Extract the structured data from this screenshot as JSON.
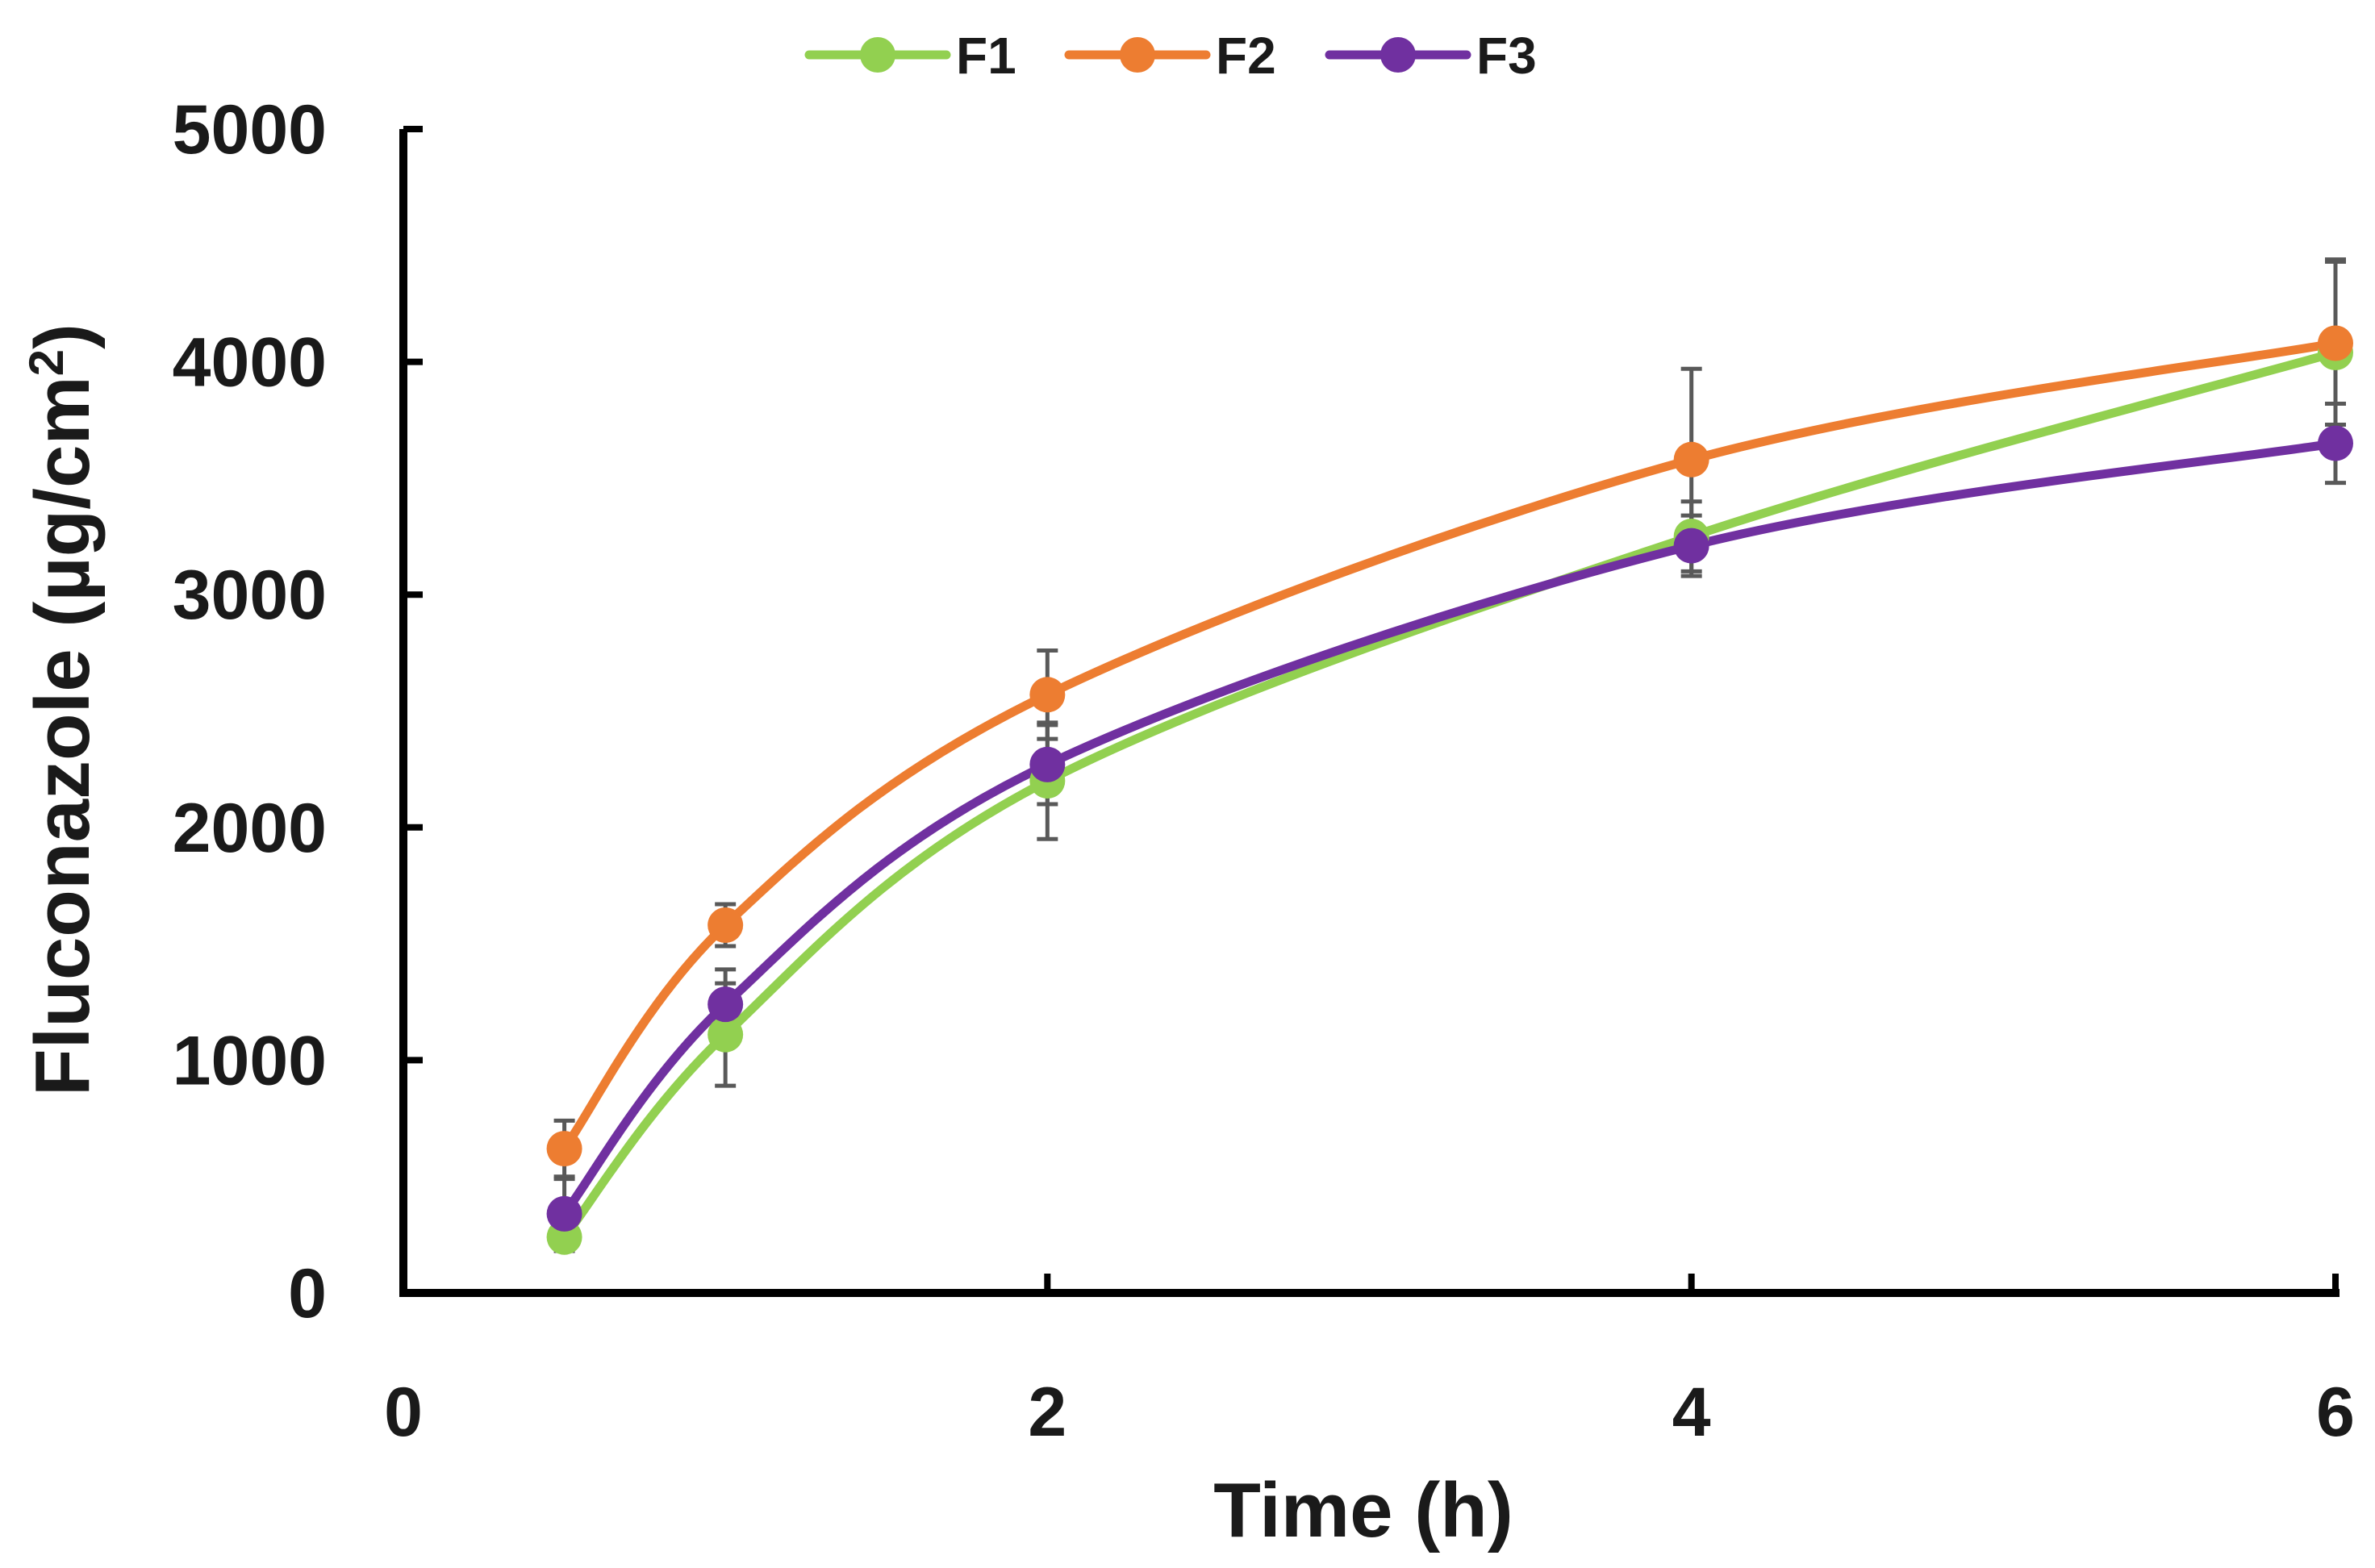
{
  "chart_data": {
    "type": "line",
    "xlabel": "Time (h)",
    "ylabel_main": "Fluconazole (µg/cm",
    "ylabel_sup": "2",
    "ylabel_end": ")",
    "xlim": [
      0,
      6
    ],
    "ylim": [
      0,
      5000
    ],
    "x_ticks": [
      0,
      2,
      4,
      6
    ],
    "x_tick_labels": [
      "0",
      "2",
      "4",
      "6"
    ],
    "y_ticks": [
      0,
      1000,
      2000,
      3000,
      4000,
      5000
    ],
    "y_tick_labels": [
      "0",
      "1000",
      "2000",
      "3000",
      "4000",
      "5000"
    ],
    "legend_position": "top-center",
    "error_bar_color": "#595959",
    "series": [
      {
        "name": "F1",
        "color": "#92d050",
        "x": [
          0.5,
          1,
          2,
          4,
          6
        ],
        "y": [
          240,
          1110,
          2200,
          3250,
          4040
        ],
        "error": [
          60,
          220,
          250,
          150,
          400
        ]
      },
      {
        "name": "F2",
        "color": "#ed7d31",
        "x": [
          0.5,
          1,
          2,
          4,
          6
        ],
        "y": [
          620,
          1580,
          2570,
          3580,
          4080
        ],
        "error": [
          120,
          90,
          190,
          390,
          350
        ]
      },
      {
        "name": "F3",
        "color": "#7030a0",
        "x": [
          0.5,
          1,
          2,
          4,
          6
        ],
        "y": [
          340,
          1240,
          2270,
          3210,
          3650
        ],
        "error": [
          150,
          150,
          170,
          130,
          170
        ]
      }
    ]
  }
}
